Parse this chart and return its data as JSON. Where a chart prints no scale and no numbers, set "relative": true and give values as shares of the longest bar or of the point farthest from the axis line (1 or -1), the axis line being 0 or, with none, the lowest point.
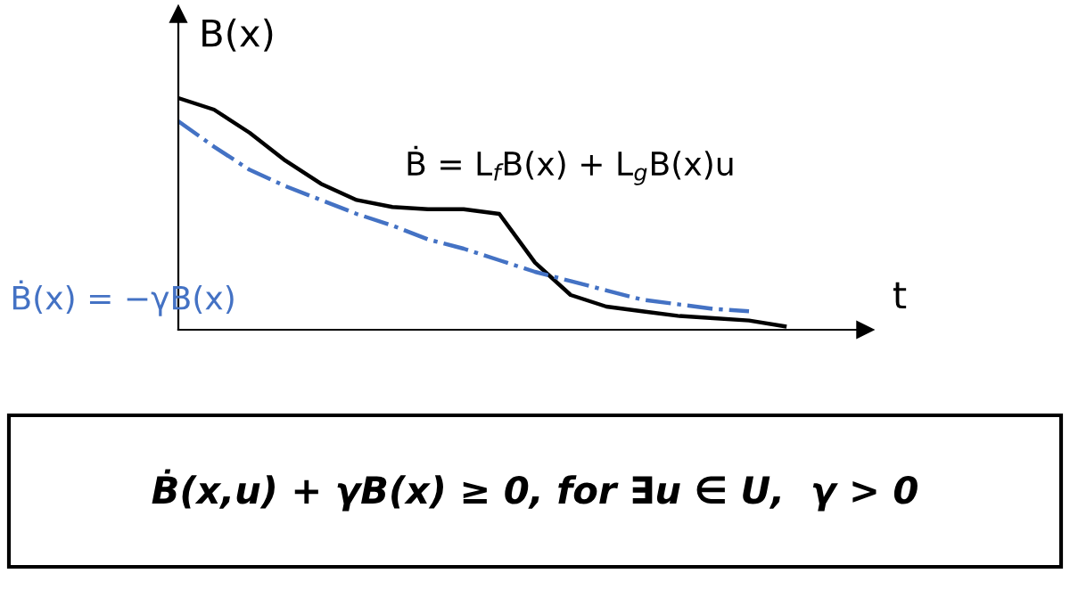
{
  "chart_data": {
    "type": "line",
    "relative": true,
    "ylabel": "B(x)",
    "xlabel": "t",
    "categories": [
      null,
      null,
      null,
      null,
      null,
      null,
      null,
      null,
      null,
      null,
      null,
      null,
      null,
      null,
      null,
      null,
      null,
      null
    ],
    "series": [
      {
        "name": "Ḃ = L$_{f}$B(x) + L$_{g}$B(x)u",
        "color": "#000000",
        "line_style": "solid",
        "values": [
          1.0,
          0.95,
          0.85,
          0.73,
          0.63,
          0.56,
          0.53,
          0.52,
          0.52,
          0.5,
          0.29,
          0.15,
          0.1,
          0.08,
          0.06,
          0.05,
          0.04,
          0.015
        ]
      },
      {
        "name": "Ḃ(x) = −γB(x)",
        "color": "#4472c4",
        "line_style": "dashdot",
        "values": [
          0.9,
          0.79,
          0.69,
          0.62,
          0.56,
          0.5,
          0.45,
          0.39,
          0.35,
          0.3,
          0.25,
          0.21,
          0.17,
          0.13,
          0.11,
          0.09,
          0.08,
          null
        ]
      }
    ],
    "annotations": [
      "Ḃ(x,u) + γB(x) ≥ 0, for ∃u ∈ U,  γ > 0"
    ],
    "marker": "none",
    "legend": false
  }
}
